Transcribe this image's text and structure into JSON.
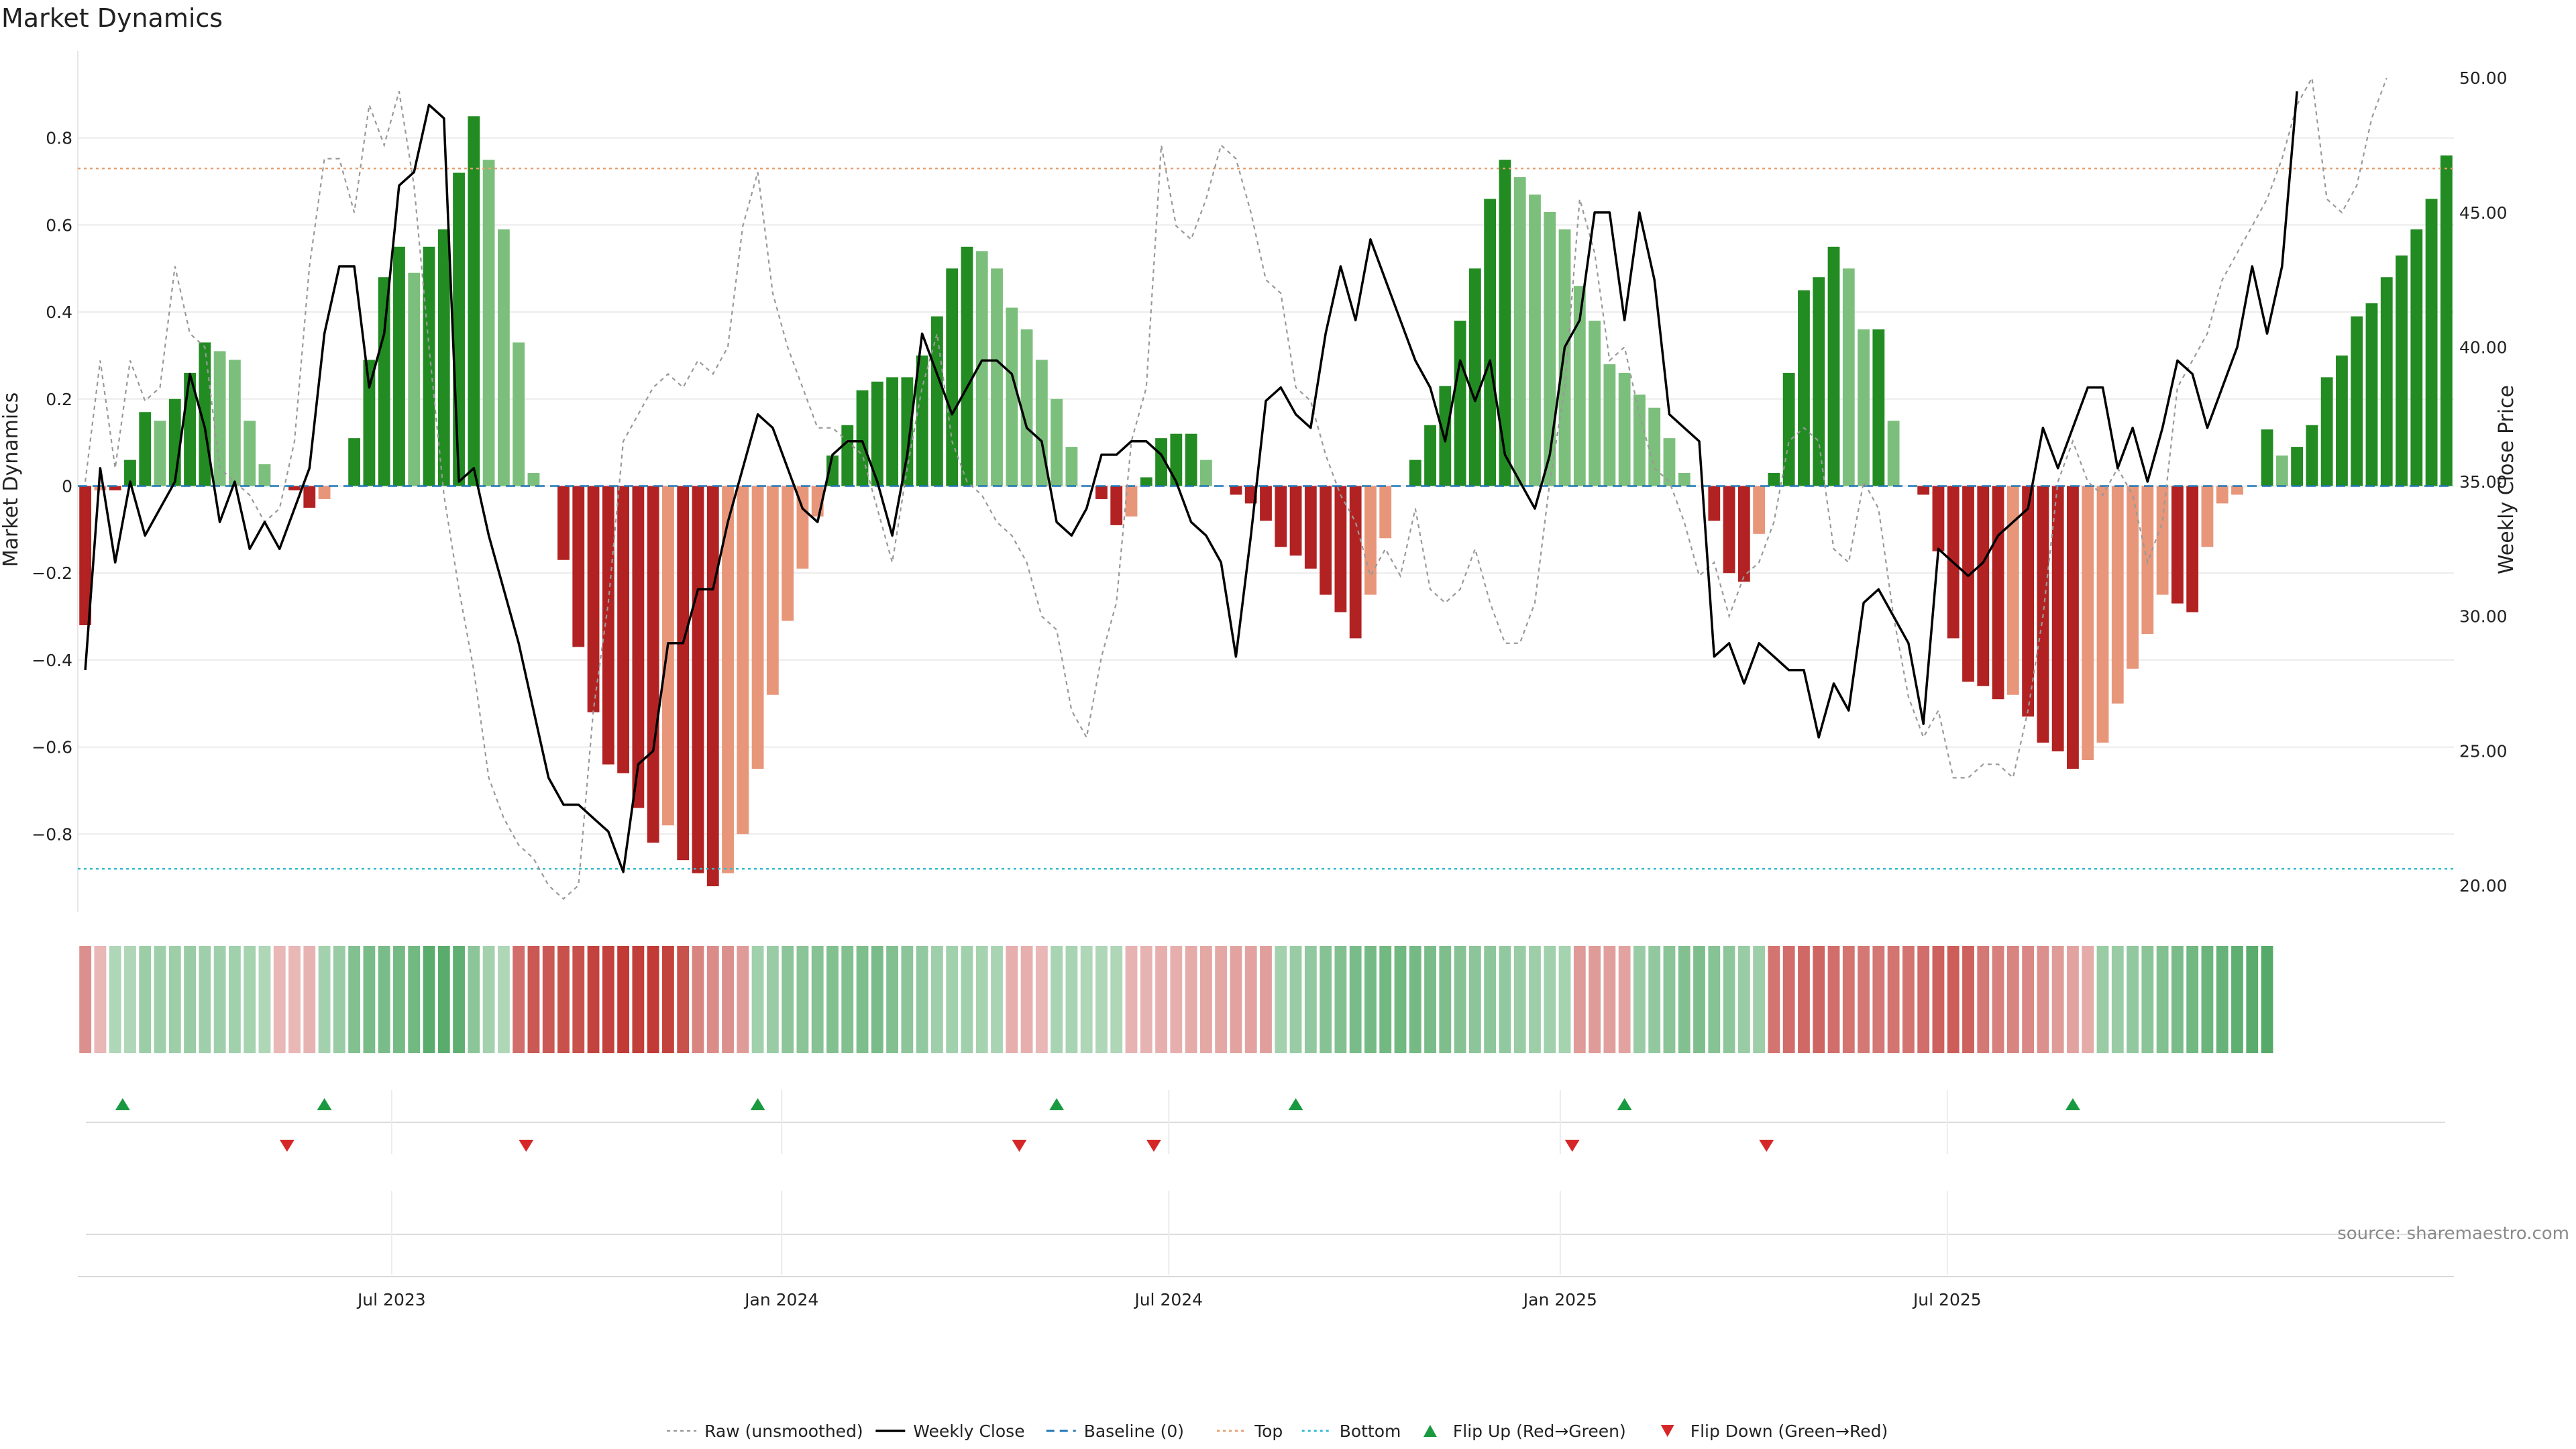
{
  "chart_data": {
    "type": "bar",
    "title": "Market Dynamics",
    "ylabel": "Market Dynamics",
    "y2label": "Weekly Close Price",
    "ylim": [
      -0.98,
      1.0
    ],
    "y2lim": [
      19.0,
      51.0
    ],
    "yticks": [
      0.8,
      0.6,
      0.4,
      0.2,
      0,
      -0.2,
      -0.4,
      -0.6,
      -0.8
    ],
    "yticks_text": [
      "0.8",
      "0.6",
      "0.4",
      "0.2",
      "0",
      "−0.2",
      "−0.4",
      "−0.6",
      "−0.8"
    ],
    "y2ticks": [
      50,
      45,
      40,
      35,
      30,
      25,
      20
    ],
    "y2ticks_text": [
      "50.00",
      "45.00",
      "40.00",
      "35.00",
      "30.00",
      "25.00",
      "20.00"
    ],
    "xlabels": [
      {
        "week": 20.5,
        "text": "Jul 2023"
      },
      {
        "week": 46.6,
        "text": "Jan 2024"
      },
      {
        "week": 72.5,
        "text": "Jul 2024"
      },
      {
        "week": 98.7,
        "text": "Jan 2025"
      },
      {
        "week": 124.6,
        "text": "Jul 2025"
      }
    ],
    "top_line": 0.73,
    "bottom_line": -0.88,
    "series": [
      {
        "name": "Market Dynamics",
        "values": [
          -0.32,
          -0.01,
          -0.01,
          0.06,
          0.17,
          0.15,
          0.2,
          0.26,
          0.33,
          0.31,
          0.29,
          0.15,
          0.05,
          0.0,
          -0.01,
          -0.05,
          -0.03,
          0.0,
          0.11,
          0.29,
          0.48,
          0.55,
          0.49,
          0.55,
          0.59,
          0.72,
          0.85,
          0.75,
          0.59,
          0.33,
          0.03,
          0.0,
          -0.17,
          -0.37,
          -0.52,
          -0.64,
          -0.66,
          -0.74,
          -0.82,
          -0.78,
          -0.86,
          -0.89,
          -0.92,
          -0.89,
          -0.8,
          -0.65,
          -0.48,
          -0.31,
          -0.19,
          -0.07,
          0.07,
          0.14,
          0.22,
          0.24,
          0.25,
          0.25,
          0.3,
          0.39,
          0.5,
          0.55,
          0.54,
          0.5,
          0.41,
          0.36,
          0.29,
          0.2,
          0.09,
          0.0,
          -0.03,
          -0.09,
          -0.07,
          0.02,
          0.11,
          0.12,
          0.12,
          0.06,
          0.0,
          -0.02,
          -0.04,
          -0.08,
          -0.14,
          -0.16,
          -0.19,
          -0.25,
          -0.29,
          -0.35,
          -0.25,
          -0.12,
          0.0,
          0.06,
          0.14,
          0.23,
          0.38,
          0.5,
          0.66,
          0.75,
          0.71,
          0.67,
          0.63,
          0.59,
          0.46,
          0.38,
          0.28,
          0.26,
          0.21,
          0.18,
          0.11,
          0.03,
          0.0,
          -0.08,
          -0.2,
          -0.22,
          -0.11,
          0.03,
          0.26,
          0.45,
          0.48,
          0.55,
          0.5,
          0.36,
          0.36,
          0.15,
          0.0,
          -0.02,
          -0.15,
          -0.35,
          -0.45,
          -0.46,
          -0.49,
          -0.48,
          -0.53,
          -0.59,
          -0.61,
          -0.65,
          -0.63,
          -0.59,
          -0.5,
          -0.42,
          -0.34,
          -0.25,
          -0.27,
          -0.29,
          -0.14,
          -0.04,
          -0.02,
          0.0,
          0.13,
          0.07,
          0.09,
          0.14,
          0.25,
          0.3,
          0.39,
          0.42,
          0.48,
          0.53,
          0.59,
          0.66,
          0.76
        ]
      },
      {
        "name": "Weekly Close",
        "values": [
          28.0,
          35.5,
          32.0,
          35.0,
          33.0,
          34.0,
          35.0,
          39.0,
          37.0,
          33.5,
          35.0,
          32.5,
          33.5,
          32.5,
          34.0,
          35.5,
          40.5,
          43.0,
          43.0,
          38.5,
          40.5,
          46.0,
          46.5,
          49.0,
          48.5,
          35.0,
          35.5,
          33.0,
          31.0,
          29.0,
          26.5,
          24.0,
          23.0,
          23.0,
          22.5,
          22.0,
          20.5,
          24.5,
          25.0,
          29.0,
          29.0,
          31.0,
          31.0,
          33.5,
          35.5,
          37.5,
          37.0,
          35.5,
          34.0,
          33.5,
          36.0,
          36.5,
          36.5,
          35.0,
          33.0,
          36.0,
          40.5,
          39.0,
          37.5,
          38.5,
          39.5,
          39.5,
          39.0,
          37.0,
          36.5,
          33.5,
          33.0,
          34.0,
          36.0,
          36.0,
          36.5,
          36.5,
          36.0,
          35.0,
          33.5,
          33.0,
          32.0,
          28.5,
          33.0,
          38.0,
          38.5,
          37.5,
          37.0,
          40.5,
          43.0,
          41.0,
          44.0,
          42.5,
          41.0,
          39.5,
          38.5,
          36.5,
          39.5,
          38.0,
          39.5,
          36.0,
          35.0,
          34.0,
          36.0,
          40.0,
          41.0,
          45.0,
          45.0,
          41.0,
          45.0,
          42.5,
          37.5,
          37.0,
          36.5,
          28.5,
          29.0,
          27.5,
          29.0,
          28.5,
          28.0,
          28.0,
          25.5,
          27.5,
          26.5,
          30.5,
          31.0,
          30.0,
          29.0,
          26.0,
          32.5,
          32.0,
          31.5,
          32.0,
          33.0,
          33.5,
          34.0,
          37.0,
          35.5,
          37.0,
          38.5,
          38.5,
          35.5,
          37.0,
          35.0,
          37.0,
          39.5,
          39.0,
          37.0,
          38.5,
          40.0,
          43.0,
          40.5,
          43.0,
          49.5
        ]
      },
      {
        "name": "Raw (unsmoothed)",
        "values": [
          35.0,
          39.5,
          35.5,
          39.5,
          38.0,
          38.5,
          43.0,
          40.5,
          40.0,
          35.5,
          35.0,
          34.5,
          33.5,
          34.0,
          36.5,
          43.0,
          47.0,
          47.0,
          45.0,
          49.0,
          47.5,
          49.5,
          46.0,
          40.0,
          34.5,
          31.0,
          28.0,
          24.0,
          22.5,
          21.5,
          21.0,
          20.0,
          19.5,
          20.0,
          26.5,
          30.5,
          36.5,
          37.5,
          38.5,
          39.0,
          38.5,
          39.5,
          39.0,
          40.0,
          44.5,
          46.5,
          42.0,
          40.0,
          38.5,
          37.0,
          37.0,
          36.5,
          36.0,
          34.0,
          32.0,
          35.5,
          38.5,
          40.5,
          36.5,
          35.0,
          34.5,
          33.5,
          33.0,
          32.0,
          30.0,
          29.5,
          26.5,
          25.5,
          28.5,
          30.5,
          36.5,
          38.5,
          47.5,
          44.5,
          44.0,
          45.5,
          47.5,
          47.0,
          45.0,
          42.5,
          42.0,
          38.5,
          38.0,
          36.0,
          34.5,
          33.5,
          31.5,
          32.5,
          31.5,
          34.0,
          31.0,
          30.5,
          31.0,
          32.5,
          30.5,
          29.0,
          29.0,
          30.5,
          35.0,
          38.5,
          45.5,
          43.5,
          39.5,
          40.0,
          37.5,
          35.5,
          35.0,
          33.5,
          31.5,
          32.0,
          30.0,
          31.5,
          32.0,
          33.5,
          36.5,
          37.0,
          36.5,
          32.5,
          32.0,
          35.0,
          34.0,
          30.0,
          27.0,
          25.5,
          26.5,
          24.0,
          24.0,
          24.5,
          24.5,
          24.0,
          26.5,
          30.0,
          35.0,
          36.5,
          35.0,
          34.5,
          35.5,
          34.5,
          32.0,
          33.5,
          38.5,
          39.5,
          40.5,
          42.5,
          43.5,
          44.5,
          45.5,
          47.0,
          49.0,
          50.0,
          45.5,
          45.0,
          46.0,
          48.5,
          50.0
        ]
      }
    ],
    "strip_strength": [
      -0.34,
      -0.16,
      0.2,
      0.2,
      0.29,
      0.27,
      0.28,
      0.3,
      0.27,
      0.27,
      0.26,
      0.24,
      0.2,
      -0.16,
      -0.16,
      -0.18,
      0.25,
      0.3,
      0.4,
      0.44,
      0.44,
      0.46,
      0.48,
      0.58,
      0.58,
      0.55,
      0.35,
      0.25,
      0.2,
      -0.5,
      -0.6,
      -0.6,
      -0.64,
      -0.64,
      -0.7,
      -0.7,
      -0.74,
      -0.72,
      -0.74,
      -0.7,
      -0.64,
      -0.4,
      -0.36,
      -0.34,
      -0.3,
      0.26,
      0.3,
      0.35,
      0.36,
      0.38,
      0.4,
      0.4,
      0.42,
      0.44,
      0.4,
      0.35,
      0.32,
      0.27,
      0.26,
      0.26,
      0.24,
      0.22,
      -0.2,
      -0.2,
      -0.16,
      0.22,
      0.22,
      0.2,
      0.2,
      0.2,
      -0.18,
      -0.18,
      -0.2,
      -0.2,
      -0.22,
      -0.24,
      -0.24,
      -0.26,
      -0.26,
      -0.28,
      0.25,
      0.3,
      0.32,
      0.38,
      0.4,
      0.44,
      0.46,
      0.48,
      0.48,
      0.46,
      0.44,
      0.42,
      0.38,
      0.35,
      0.34,
      0.32,
      0.3,
      0.28,
      0.26,
      0.24,
      -0.3,
      -0.3,
      -0.28,
      -0.26,
      0.3,
      0.32,
      0.36,
      0.4,
      0.42,
      0.38,
      0.34,
      0.3,
      0.28,
      -0.48,
      -0.5,
      -0.52,
      -0.54,
      -0.5,
      -0.48,
      -0.46,
      -0.46,
      -0.48,
      -0.48,
      -0.5,
      -0.56,
      -0.58,
      -0.56,
      -0.46,
      -0.42,
      -0.4,
      -0.38,
      -0.34,
      -0.3,
      -0.26,
      -0.22,
      0.3,
      0.3,
      0.32,
      0.36,
      0.4,
      0.44,
      0.48,
      0.5,
      0.52,
      0.55,
      0.58,
      0.6
    ],
    "flip_up": [
      2.5,
      16,
      45,
      65,
      81,
      103,
      133
    ],
    "flip_down": [
      13.5,
      29.5,
      62.5,
      71.5,
      99.5,
      112.5
    ],
    "legend": [
      "Raw (unsmoothed)",
      "Weekly Close",
      "Baseline (0)",
      "Top",
      "Bottom",
      "Flip Up (Red→Green)",
      "Flip Down (Green→Red)"
    ],
    "legend_placement": "bottom-center",
    "source": "source: sharemaestro.com",
    "colors": {
      "pos_strong": "#228b22",
      "pos_weak": "#7cbf7c",
      "neg_strong": "#b22222",
      "neg_weak": "#e8967a",
      "close": "#000000",
      "raw": "#999999",
      "baseline": "#1f77b4",
      "top": "#e8a070",
      "bottom": "#33bbcc",
      "flip_up": "#1a9a40",
      "flip_down": "#d62728"
    },
    "grid": true
  }
}
